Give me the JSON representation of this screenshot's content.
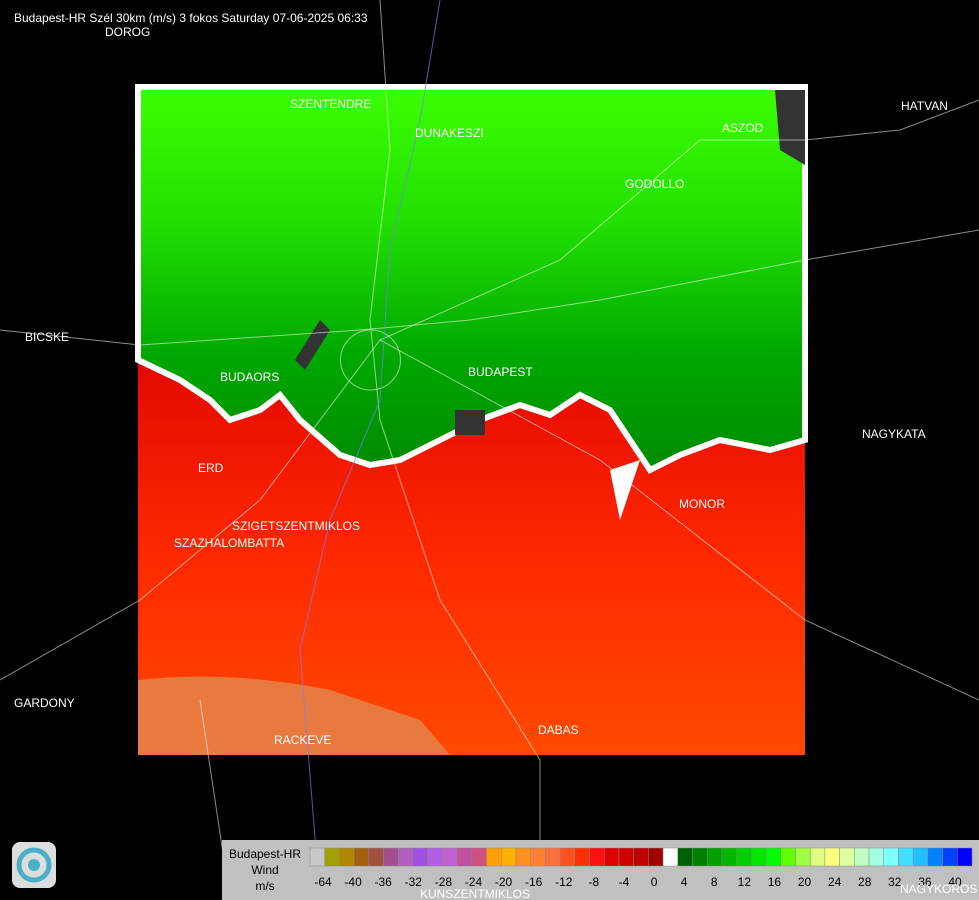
{
  "header": {
    "title": "Budapest-HR Szél 30km (m/s) 3 fokos Saturday 07-06-2025 06:33"
  },
  "places": [
    "DOROG",
    "SZENTENDRE",
    "DUNAKESZI",
    "ASZOD",
    "HATVAN",
    "GODOLLO",
    "BICSKE",
    "BUDAORS",
    "BUDAPEST",
    "NAGYKATA",
    "ERD",
    "MONOR",
    "SZIGETSZENTMIKLOS",
    "SZAZHALOMBATTA",
    "GARDONY",
    "RACKEVE",
    "DABAS",
    "KUNSZENTMIKLOS",
    "NAGYKOROS"
  ],
  "legend": {
    "title": "Budapest-HR",
    "quantity": "Wind",
    "unit": "m/s",
    "labels": [
      -64,
      -40,
      -36,
      -32,
      -28,
      -24,
      -20,
      -16,
      -12,
      -8,
      -4,
      0,
      4,
      8,
      12,
      16,
      20,
      24,
      28,
      32,
      36,
      40
    ],
    "colors": [
      "#c8c8c8",
      "#a0a000",
      "#b08800",
      "#a06010",
      "#a05040",
      "#a05090",
      "#b060c0",
      "#a050e0",
      "#b060e0",
      "#c060d0",
      "#c050a0",
      "#d05080",
      "#ffa000",
      "#ffb000",
      "#ff9020",
      "#ff8030",
      "#ff7040",
      "#ff5020",
      "#ff3000",
      "#ff1010",
      "#e00000",
      "#d00000",
      "#c00000",
      "#a00000",
      "#ffffff",
      "#006000",
      "#008000",
      "#00a000",
      "#00b800",
      "#00d000",
      "#00e800",
      "#00ff00",
      "#60ff00",
      "#a0ff40",
      "#e0ff80",
      "#ffff80",
      "#e0ffa0",
      "#c0ffc0",
      "#a0ffe0",
      "#80ffff",
      "#40e0ff",
      "#20c0ff",
      "#0080ff",
      "#0040ff",
      "#0000ff"
    ]
  }
}
